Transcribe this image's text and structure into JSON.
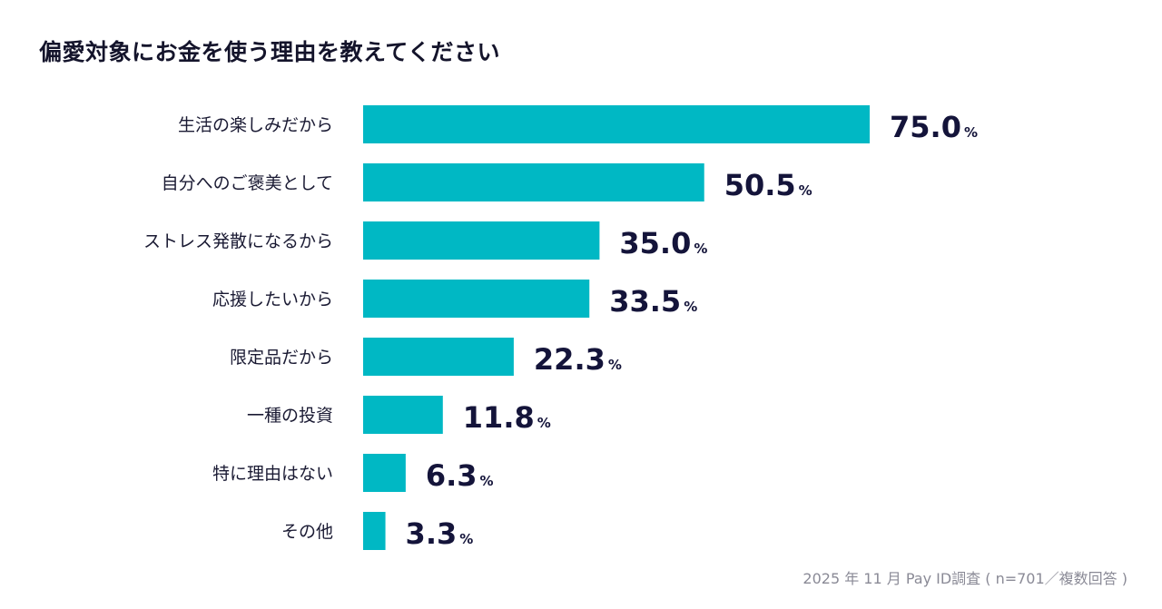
{
  "chart_data": {
    "type": "bar",
    "orientation": "horizontal",
    "title": "偏愛対象にお金を使う理由を教えてください",
    "categories": [
      "生活の楽しみだから",
      "自分へのご褒美として",
      "ストレス発散になるから",
      "応援したいから",
      "限定品だから",
      "一種の投資",
      "特に理由はない",
      "その他"
    ],
    "values": [
      75.0,
      50.5,
      35.0,
      33.5,
      22.3,
      11.8,
      6.3,
      3.3
    ],
    "value_labels": [
      "75.0",
      "50.5",
      "35.0",
      "33.5",
      "22.3",
      "11.8",
      "6.3",
      "3.3"
    ],
    "unit": "%",
    "xlim": [
      0,
      100
    ],
    "grid": false,
    "legend": "none",
    "bar_color": "#00b8c4",
    "text_color": "#14143a"
  },
  "footer": {
    "source": "2025 年 11 月 Pay ID調査 ( n=701／複数回答 )"
  }
}
